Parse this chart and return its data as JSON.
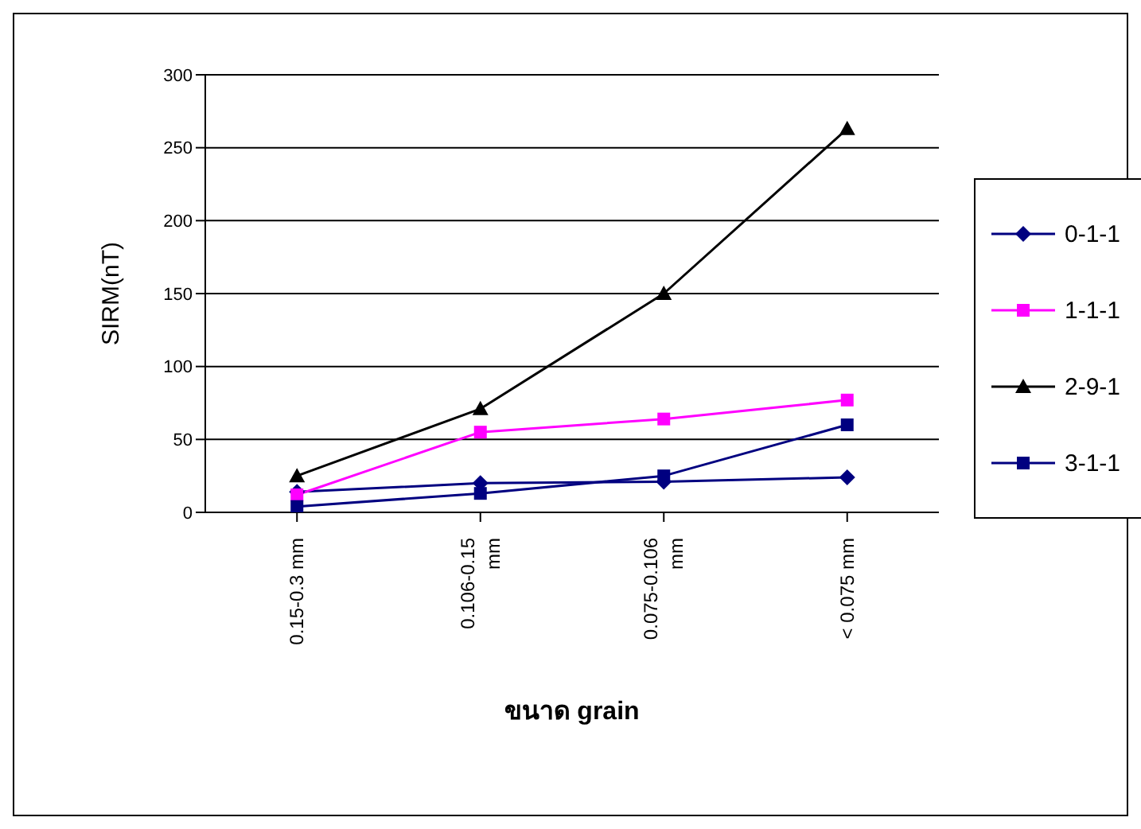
{
  "chart_data": {
    "type": "line",
    "xlabel": "ขนาด grain",
    "ylabel": "SIRM(nT)",
    "categories": [
      "0.15-0.3 mm",
      "0.106-0.15 mm",
      "0.075-0.106 mm",
      "< 0.075 mm"
    ],
    "series": [
      {
        "name": "0-1-1",
        "color": "#000080",
        "marker": "diamond",
        "values": [
          14,
          20,
          21,
          24
        ]
      },
      {
        "name": "1-1-1",
        "color": "#ff00ff",
        "marker": "square",
        "values": [
          12,
          55,
          64,
          77
        ]
      },
      {
        "name": "2-9-1",
        "color": "#000000",
        "marker": "triangle",
        "values": [
          25,
          71,
          150,
          263
        ]
      },
      {
        "name": "3-1-1",
        "color": "#000080",
        "marker": "square",
        "values": [
          4,
          13,
          25,
          60
        ]
      }
    ],
    "ylim": [
      0,
      300
    ],
    "yticks": [
      0,
      50,
      100,
      150,
      200,
      250,
      300
    ],
    "grid": "y",
    "legend": "right",
    "line_style": "solid"
  }
}
